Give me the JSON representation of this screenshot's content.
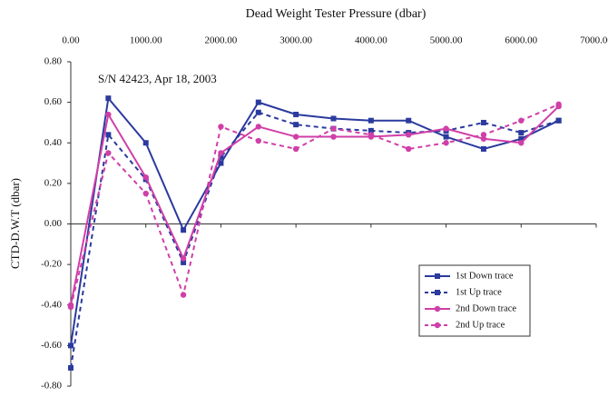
{
  "chart_data": {
    "type": "line",
    "xlabel": "Dead Weight Tester Pressure (dbar)",
    "ylabel": "CTD-D.W.T (dbar)",
    "annotation": "S/N 42423, Apr  18, 2003",
    "x": [
      0,
      500,
      1000,
      1500,
      2000,
      2500,
      3000,
      3500,
      4000,
      4500,
      5000,
      5500,
      6000,
      6500
    ],
    "xlim": [
      0,
      7000
    ],
    "xticks": [
      {
        "value": 0,
        "label": "0.00"
      },
      {
        "value": 1000,
        "label": "1000.00"
      },
      {
        "value": 2000,
        "label": "2000.00"
      },
      {
        "value": 3000,
        "label": "3000.00"
      },
      {
        "value": 4000,
        "label": "4000.00"
      },
      {
        "value": 5000,
        "label": "5000.00"
      },
      {
        "value": 6000,
        "label": "6000.00"
      },
      {
        "value": 7000,
        "label": "7000.00"
      }
    ],
    "ylim": [
      -0.8,
      0.8
    ],
    "yticks": [
      {
        "value": 0.8,
        "label": "0.80"
      },
      {
        "value": 0.6,
        "label": "0.60"
      },
      {
        "value": 0.4,
        "label": "0.40"
      },
      {
        "value": 0.2,
        "label": "0.20"
      },
      {
        "value": 0,
        "label": "0.00"
      },
      {
        "value": -0.2,
        "label": "-0.20"
      },
      {
        "value": -0.4,
        "label": "-0.40"
      },
      {
        "value": -0.6,
        "label": "-0.60"
      },
      {
        "value": -0.8,
        "label": "-0.80"
      }
    ],
    "legend": "lower right",
    "series": [
      {
        "name": "1st Down trace",
        "color": "#2b3a9e",
        "dashed": false,
        "marker": "square",
        "values": [
          -0.6,
          0.62,
          0.4,
          -0.03,
          0.3,
          0.6,
          0.54,
          0.52,
          0.51,
          0.51,
          0.43,
          0.37,
          0.42,
          0.51
        ]
      },
      {
        "name": "1st Up trace",
        "color": "#2b3a9e",
        "dashed": true,
        "marker": "square",
        "values": [
          -0.71,
          0.44,
          0.22,
          -0.19,
          0.33,
          0.55,
          0.49,
          0.47,
          0.46,
          0.45,
          0.46,
          0.5,
          0.45,
          0.51
        ]
      },
      {
        "name": "2nd Down trace",
        "color": "#d03fa8",
        "dashed": false,
        "marker": "circle",
        "values": [
          -0.4,
          0.54,
          0.23,
          -0.17,
          0.35,
          0.48,
          0.43,
          0.43,
          0.43,
          0.44,
          0.47,
          0.42,
          0.4,
          0.58
        ]
      },
      {
        "name": "2nd Up trace",
        "color": "#d03fa8",
        "dashed": true,
        "marker": "circle",
        "values": [
          -0.41,
          0.35,
          0.15,
          -0.35,
          0.48,
          0.41,
          0.37,
          0.47,
          0.44,
          0.37,
          0.4,
          0.44,
          0.51,
          0.59
        ]
      }
    ]
  }
}
